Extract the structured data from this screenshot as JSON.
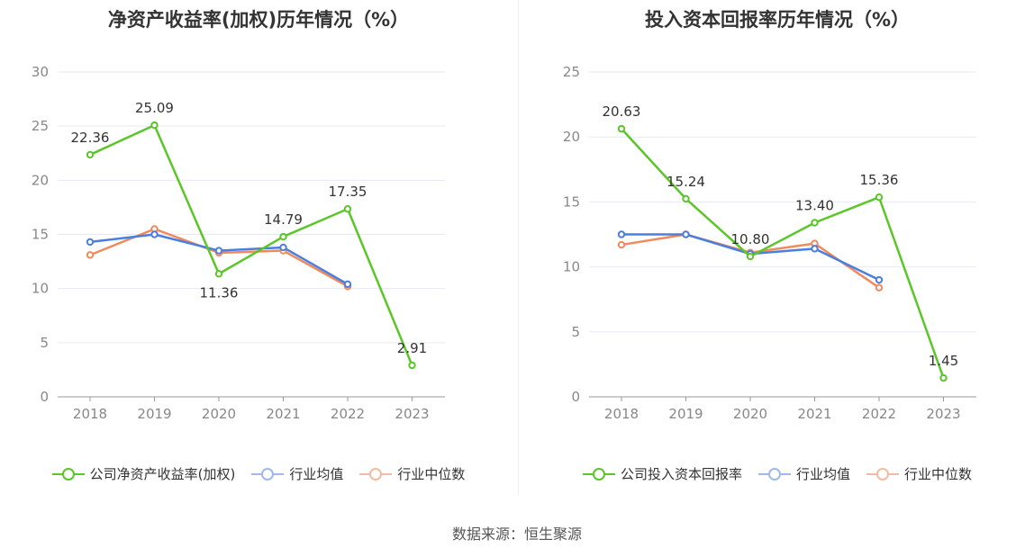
{
  "chart_data": [
    {
      "type": "line",
      "title": "净资产收益率(加权)历年情况（%）",
      "categories": [
        "2018",
        "2019",
        "2020",
        "2021",
        "2022",
        "2023"
      ],
      "ylim": [
        0,
        30
      ],
      "yticks": [
        "0",
        "5",
        "10",
        "15",
        "20",
        "25",
        "30"
      ],
      "grid": true,
      "legend_position": "bottom",
      "series": [
        {
          "name": "公司净资产收益率(加权)",
          "color": "#5ac628",
          "values": [
            22.36,
            25.09,
            11.36,
            14.79,
            17.35,
            2.91
          ],
          "labels": [
            "22.36",
            "25.09",
            "11.36",
            "14.79",
            "17.35",
            "2.91"
          ]
        },
        {
          "name": "行业均值",
          "color": "#4a7ee0",
          "values": [
            14.3,
            15.0,
            13.5,
            13.8,
            10.4,
            null
          ]
        },
        {
          "name": "行业中位数",
          "color": "#f08a5d",
          "values": [
            13.1,
            15.5,
            13.3,
            13.5,
            10.2,
            null
          ]
        }
      ]
    },
    {
      "type": "line",
      "title": "投入资本回报率历年情况（%）",
      "categories": [
        "2018",
        "2019",
        "2020",
        "2021",
        "2022",
        "2023"
      ],
      "ylim": [
        0,
        25
      ],
      "yticks": [
        "0",
        "5",
        "10",
        "15",
        "20",
        "25"
      ],
      "grid": true,
      "legend_position": "bottom",
      "series": [
        {
          "name": "公司投入资本回报率",
          "color": "#5ac628",
          "values": [
            20.63,
            15.24,
            10.8,
            13.4,
            15.36,
            1.45
          ],
          "labels": [
            "20.63",
            "15.24",
            "10.80",
            "13.40",
            "15.36",
            "1.45"
          ]
        },
        {
          "name": "行业均值",
          "color": "#4a7ee0",
          "values": [
            12.5,
            12.5,
            11.0,
            11.4,
            9.0,
            null
          ]
        },
        {
          "name": "行业中位数",
          "color": "#f08a5d",
          "values": [
            11.7,
            12.5,
            11.1,
            11.8,
            8.4,
            null
          ]
        }
      ]
    }
  ],
  "source": "数据来源：恒生聚源"
}
